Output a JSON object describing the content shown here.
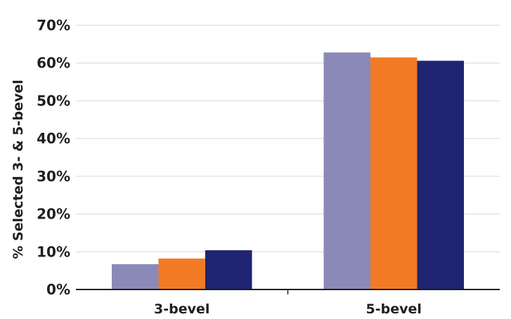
{
  "chart_data": {
    "type": "bar",
    "title": "",
    "xlabel": "",
    "ylabel": "% Selected 3- & 5-bevel",
    "ylim": [
      0,
      70
    ],
    "yticks": [
      0,
      10,
      20,
      30,
      40,
      50,
      60,
      70
    ],
    "ytick_labels": [
      "0%",
      "10%",
      "20%",
      "30%",
      "40%",
      "50%",
      "60%",
      "70%"
    ],
    "grid": true,
    "legend": "none",
    "categories": [
      "3-bevel",
      "5-bevel"
    ],
    "series": [
      {
        "color": "#8b89b7",
        "values": [
          6.7,
          62.8
        ]
      },
      {
        "color": "#f37a24",
        "values": [
          8.2,
          61.5
        ]
      },
      {
        "color": "#1e2471",
        "values": [
          10.4,
          60.6
        ]
      }
    ],
    "colors": {
      "grid": "#d6d6d6",
      "axis": "#1f1f1f"
    }
  }
}
